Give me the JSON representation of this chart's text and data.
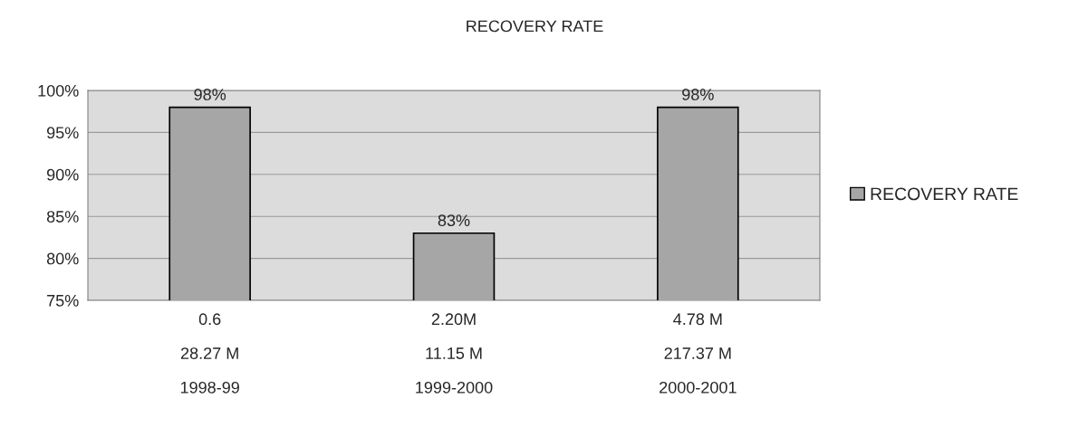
{
  "chart_data": {
    "type": "bar",
    "title": "RECOVERY RATE",
    "categories": [
      "0.6\n28.27 M\n1998-99",
      "2.20M\n11.15 M\n1999-2000",
      "4.78 M\n217.37 M\n2000-2001"
    ],
    "series": [
      {
        "name": "RECOVERY RATE",
        "color": "#a6a6a6",
        "values": [
          98,
          83,
          98
        ],
        "value_labels": [
          "98%",
          "83%",
          "98%"
        ]
      }
    ],
    "ylim": [
      75,
      100
    ],
    "yticks": [
      {
        "value": 75,
        "label": "75%"
      },
      {
        "value": 80,
        "label": "80%"
      },
      {
        "value": 85,
        "label": "85%"
      },
      {
        "value": 90,
        "label": "90%"
      },
      {
        "value": 95,
        "label": "95%"
      },
      {
        "value": 100,
        "label": "100%"
      }
    ],
    "grid": "y",
    "legend": "right"
  }
}
